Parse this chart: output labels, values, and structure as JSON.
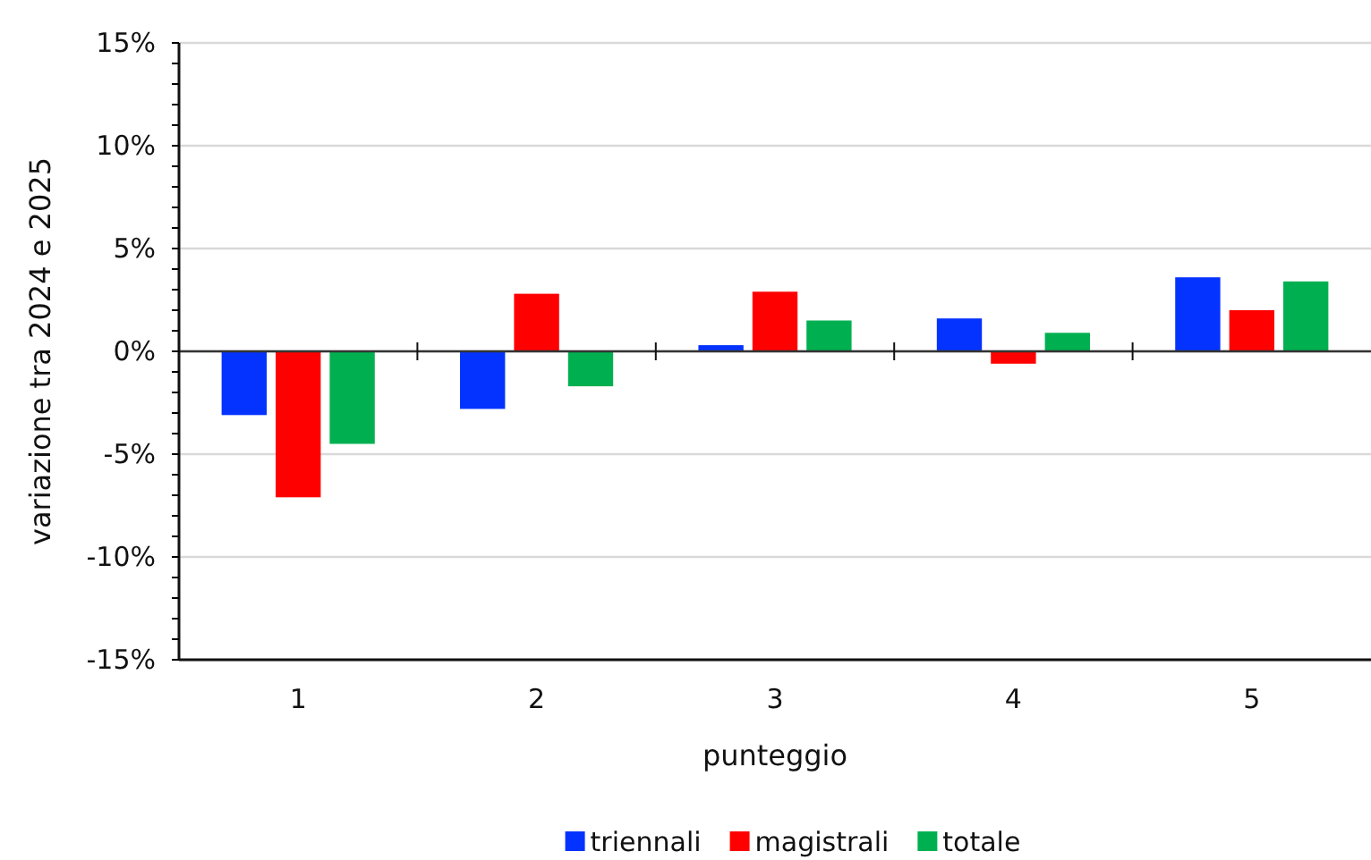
{
  "chart_data": {
    "type": "bar",
    "xlabel": "punteggio",
    "ylabel": "variazione  tra 2024 e 2025",
    "categories": [
      "1",
      "2",
      "3",
      "4",
      "5"
    ],
    "series": [
      {
        "name": "triennali",
        "color": "#0433ff",
        "values": [
          -3.1,
          -2.8,
          0.3,
          1.6,
          3.6
        ]
      },
      {
        "name": "magistrali",
        "color": "#ff0000",
        "values": [
          -7.1,
          2.8,
          2.9,
          -0.6,
          2.0
        ]
      },
      {
        "name": "totale",
        "color": "#00b050",
        "values": [
          -4.5,
          -1.7,
          1.5,
          0.9,
          3.4
        ]
      }
    ],
    "ylim": [
      -15,
      15
    ],
    "yticks": [
      {
        "value": -15,
        "label": "-15%"
      },
      {
        "value": -14,
        "label": null
      },
      {
        "value": -13,
        "label": null
      },
      {
        "value": -12,
        "label": null
      },
      {
        "value": -11,
        "label": null
      },
      {
        "value": -10,
        "label": "-10%"
      },
      {
        "value": -9,
        "label": null
      },
      {
        "value": -8,
        "label": null
      },
      {
        "value": -7,
        "label": null
      },
      {
        "value": -6,
        "label": null
      },
      {
        "value": -5,
        "label": "-5%"
      },
      {
        "value": -4,
        "label": null
      },
      {
        "value": -3,
        "label": null
      },
      {
        "value": -2,
        "label": null
      },
      {
        "value": -1,
        "label": null
      },
      {
        "value": 0,
        "label": "0%"
      },
      {
        "value": 1,
        "label": null
      },
      {
        "value": 2,
        "label": null
      },
      {
        "value": 3,
        "label": null
      },
      {
        "value": 4,
        "label": null
      },
      {
        "value": 5,
        "label": "5%"
      },
      {
        "value": 6,
        "label": null
      },
      {
        "value": 7,
        "label": null
      },
      {
        "value": 8,
        "label": null
      },
      {
        "value": 9,
        "label": null
      },
      {
        "value": 10,
        "label": "10%"
      },
      {
        "value": 11,
        "label": null
      },
      {
        "value": 12,
        "label": null
      },
      {
        "value": 13,
        "label": null
      },
      {
        "value": 14,
        "label": null
      },
      {
        "value": 15,
        "label": "15%"
      }
    ],
    "grid": "y",
    "legend": "bottom"
  }
}
